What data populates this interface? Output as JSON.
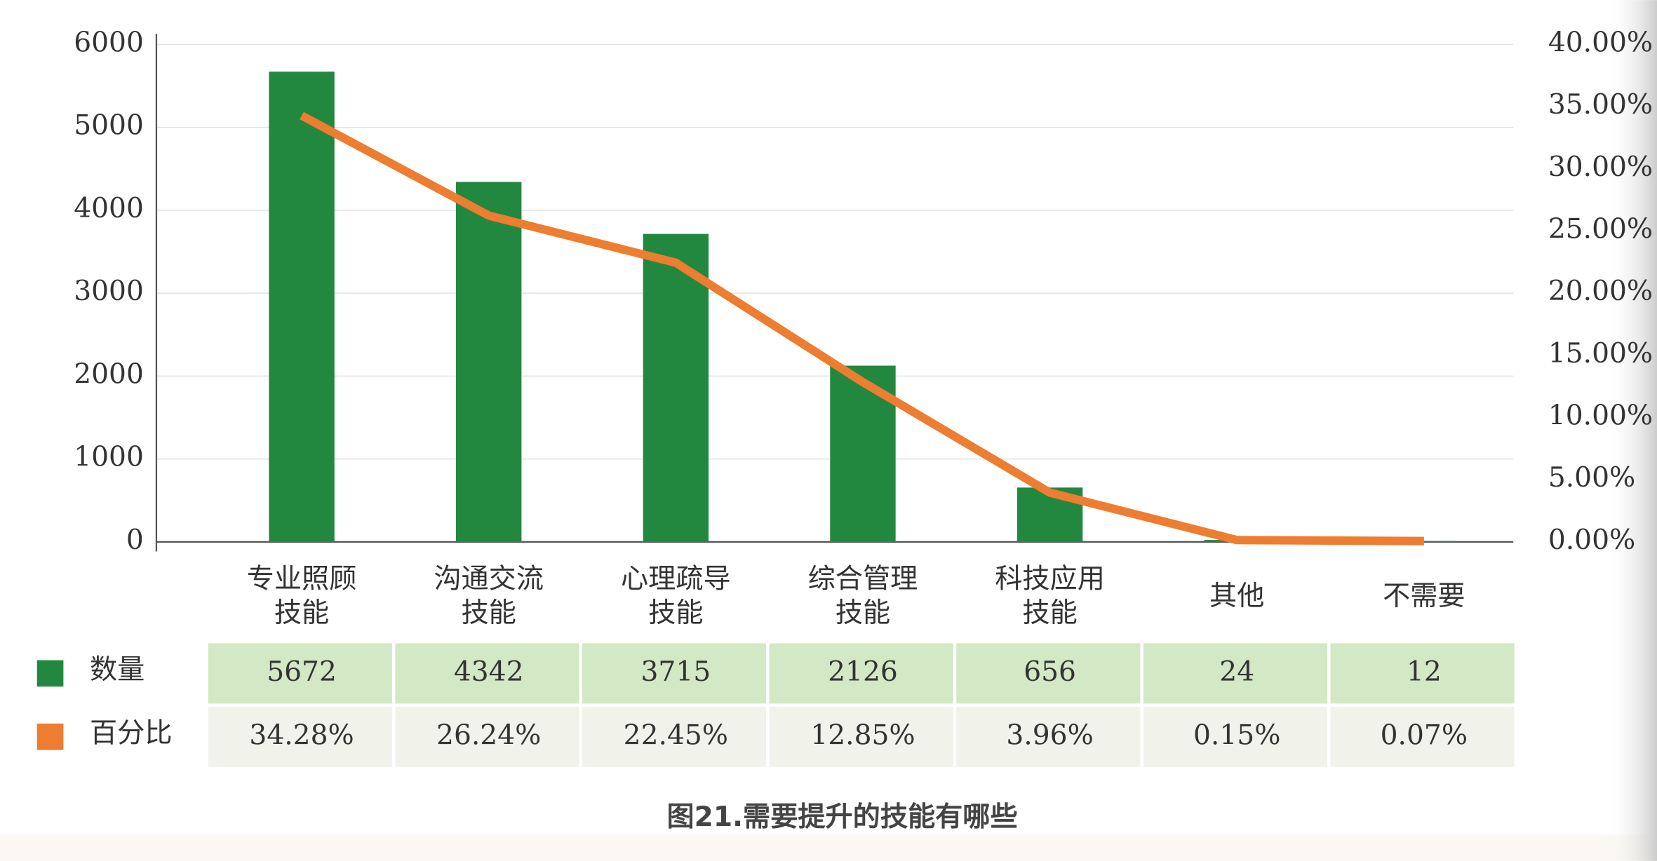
{
  "chart_data": {
    "type": "bar_line",
    "title": "图21.需要提升的技能有哪些",
    "categories": [
      "专业照顾\n技能",
      "沟通交流\n技能",
      "心理疏导\n技能",
      "综合管理\n技能",
      "科技应用\n技能",
      "其他",
      "不需要"
    ],
    "series": [
      {
        "name": "数量",
        "type": "bar",
        "color": "#22883f",
        "values": [
          5672,
          4342,
          3715,
          2126,
          656,
          24,
          12
        ]
      },
      {
        "name": "百分比",
        "type": "line",
        "axis": "y2",
        "color": "#ed7d31",
        "values": [
          34.28,
          26.24,
          22.45,
          12.85,
          3.96,
          0.15,
          0.07
        ],
        "value_labels": [
          "34.28%",
          "26.24%",
          "22.45%",
          "12.85%",
          "3.96%",
          "0.15%",
          "0.07%"
        ]
      }
    ],
    "ylim": [
      0,
      6000
    ],
    "yticks": [
      0,
      1000,
      2000,
      3000,
      4000,
      5000,
      6000
    ],
    "y2lim": [
      0,
      40
    ],
    "y2ticks": [
      {
        "value": 0,
        "label": "0.00%"
      },
      {
        "value": 5,
        "label": "5.00%"
      },
      {
        "value": 10,
        "label": "10.00%"
      },
      {
        "value": 15,
        "label": "15.00%"
      },
      {
        "value": 20,
        "label": "20.00%"
      },
      {
        "value": 25,
        "label": "25.00%"
      },
      {
        "value": 30,
        "label": "30.00%"
      },
      {
        "value": 35,
        "label": "35.00%"
      },
      {
        "value": 40,
        "label": "40.00%"
      }
    ],
    "grid": true,
    "data_table": true
  }
}
